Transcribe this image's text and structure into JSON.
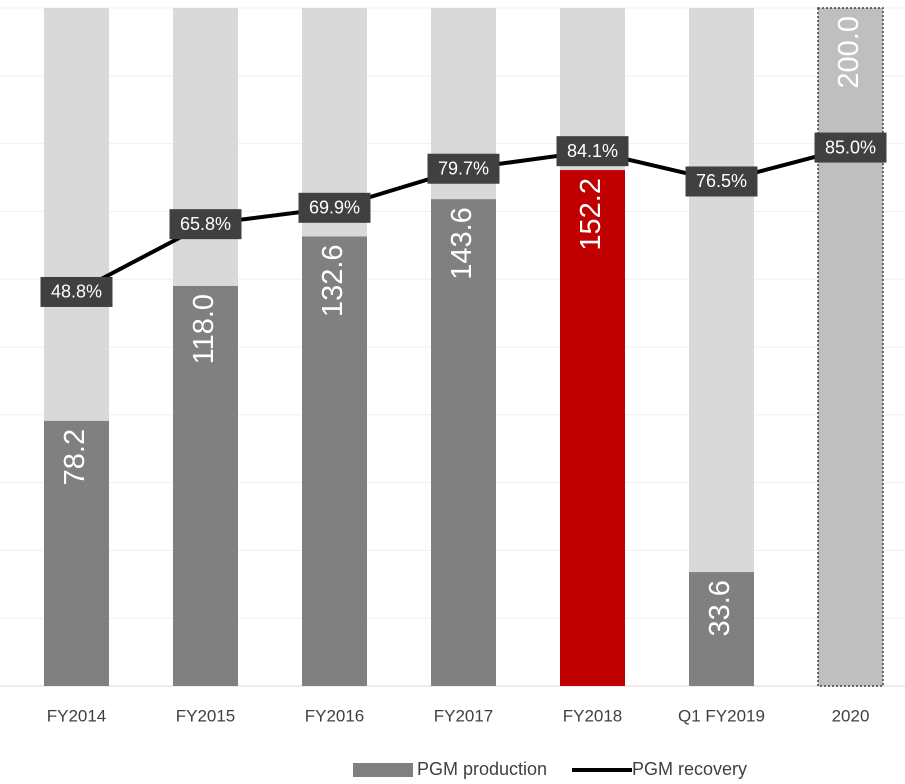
{
  "chart_data": {
    "type": "bar",
    "categories": [
      "FY2014",
      "FY2015",
      "FY2016",
      "FY2017",
      "FY2018",
      "Q1 FY2019",
      "2020"
    ],
    "ylim": [
      0,
      200
    ],
    "yticks": [
      0,
      20,
      40,
      60,
      80,
      100,
      120,
      140,
      160,
      180,
      200
    ],
    "grid": true,
    "y2lim": [
      -50,
      120
    ],
    "background_bar_color": "#d9d9d9",
    "legend": "bottom",
    "series": [
      {
        "name": "PGM production",
        "type": "bar",
        "color": "#808080",
        "colors": [
          "#808080",
          "#808080",
          "#808080",
          "#808080",
          "#c00000",
          "#808080",
          "#bfbfbf"
        ],
        "values": [
          78.2,
          118.0,
          132.6,
          143.6,
          152.2,
          33.6,
          200.0
        ],
        "value_labels": [
          "78.2",
          "118.0",
          "132.6",
          "143.6",
          "152.2",
          "33.6",
          "200.0"
        ]
      },
      {
        "name": "PGM recovery",
        "type": "line",
        "axis": "y2",
        "color": "#000000",
        "values": [
          48.8,
          65.8,
          69.9,
          79.7,
          84.1,
          76.5,
          85.0
        ],
        "value_labels": [
          "48.8%",
          "65.8%",
          "69.9%",
          "79.7%",
          "84.1%",
          "76.5%",
          "85.0%"
        ]
      }
    ]
  }
}
